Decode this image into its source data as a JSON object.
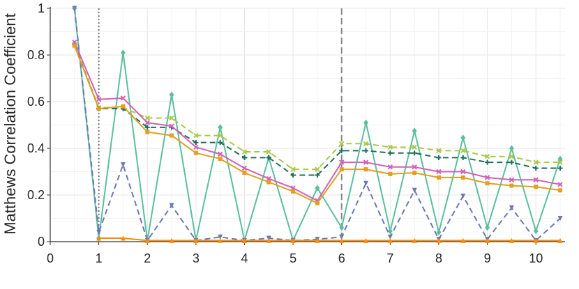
{
  "chart_data": {
    "type": "line",
    "title": "",
    "xlabel": "",
    "ylabel": "Matthews Correlation Coefficient",
    "xlim": [
      0,
      10.6
    ],
    "ylim": [
      0,
      1
    ],
    "x_ticks": [
      "0",
      "1",
      "2",
      "3",
      "4",
      "5",
      "6",
      "7",
      "8",
      "9",
      "10"
    ],
    "y_ticks": [
      "0",
      "0.2",
      "0.4",
      "0.6",
      "0.8",
      "1"
    ],
    "grid": true,
    "vlines": [
      {
        "x": 1,
        "style": "dotted",
        "color": "#777777"
      },
      {
        "x": 6,
        "style": "dashed",
        "color": "#888888"
      }
    ],
    "x": [
      0.5,
      1,
      1.5,
      2,
      2.5,
      3,
      3.5,
      4,
      4.5,
      5,
      5.5,
      6,
      6.5,
      7,
      7.5,
      8,
      8.5,
      9,
      9.5,
      10,
      10.5
    ],
    "series": [
      {
        "color": "#5bbf9f",
        "marker": "diamond",
        "dash": "solid",
        "values": [
          1.0,
          0.015,
          0.81,
          0.005,
          0.63,
          0.005,
          0.49,
          0.005,
          0.36,
          0.005,
          0.23,
          0.06,
          0.51,
          0.045,
          0.475,
          0.04,
          0.445,
          0.06,
          0.4,
          0.045,
          0.355
        ]
      },
      {
        "color": "#6b79b0",
        "marker": "tri_down",
        "dash": "dashed",
        "values": [
          1.0,
          0.04,
          0.33,
          0.005,
          0.155,
          0.005,
          0.02,
          0.005,
          0.015,
          0.005,
          0.01,
          0.02,
          0.25,
          0.02,
          0.22,
          0.01,
          0.195,
          0.01,
          0.145,
          0.005,
          0.1
        ]
      },
      {
        "color": "#a8c94a",
        "marker": "x",
        "dash": "dashed",
        "values": [
          0.845,
          0.575,
          0.575,
          0.53,
          0.53,
          0.455,
          0.455,
          0.385,
          0.385,
          0.31,
          0.31,
          0.42,
          0.42,
          0.405,
          0.405,
          0.39,
          0.39,
          0.365,
          0.365,
          0.34,
          0.34
        ]
      },
      {
        "color": "#1f6e60",
        "marker": "plus",
        "dash": "dashed",
        "values": [
          0.845,
          0.57,
          0.57,
          0.49,
          0.49,
          0.425,
          0.425,
          0.36,
          0.36,
          0.285,
          0.285,
          0.39,
          0.39,
          0.38,
          0.38,
          0.36,
          0.36,
          0.34,
          0.34,
          0.315,
          0.315
        ]
      },
      {
        "color": "#d162b6",
        "marker": "x",
        "dash": "solid",
        "values": [
          0.855,
          0.61,
          0.615,
          0.51,
          0.495,
          0.405,
          0.375,
          0.315,
          0.27,
          0.23,
          0.175,
          0.34,
          0.34,
          0.32,
          0.32,
          0.3,
          0.3,
          0.275,
          0.265,
          0.265,
          0.245
        ]
      },
      {
        "color": "#e0a020",
        "marker": "square",
        "dash": "solid",
        "values": [
          0.84,
          0.57,
          0.58,
          0.47,
          0.455,
          0.38,
          0.355,
          0.295,
          0.255,
          0.215,
          0.165,
          0.31,
          0.31,
          0.29,
          0.295,
          0.275,
          0.275,
          0.25,
          0.24,
          0.235,
          0.22
        ]
      },
      {
        "color": "#ff8c00",
        "marker": "tri_up",
        "dash": "solid",
        "values": [
          null,
          0.015,
          0.015,
          0.005,
          0.005,
          0.005,
          0.005,
          0.005,
          0.005,
          0.005,
          0.005,
          0.005,
          0.005,
          0.005,
          0.005,
          0.005,
          0.005,
          0.005,
          0.005,
          0.005,
          0.005
        ]
      }
    ]
  }
}
